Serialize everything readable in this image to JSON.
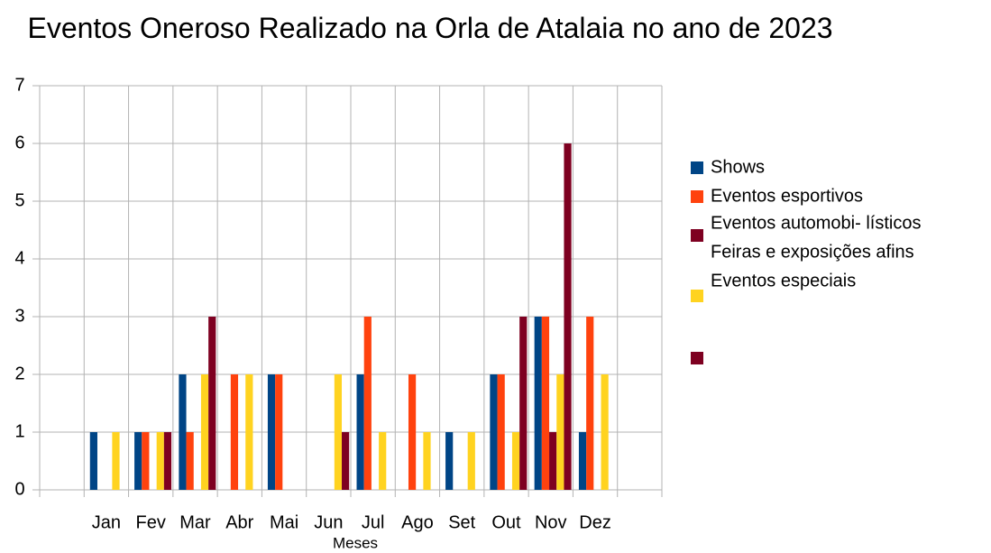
{
  "chart_data": {
    "type": "bar",
    "title": "Eventos Oneroso Realizado na Orla de Atalaia no ano de 2023",
    "x_label": "Meses",
    "categories": [
      null,
      "Jan",
      "Fev",
      "Mar",
      "Abr",
      "Mai",
      "Jun",
      "Jul",
      "Ago",
      "Set",
      "Out",
      "Nov",
      "Dez",
      null
    ],
    "series": [
      {
        "name": "Shows",
        "color": "#004586",
        "values": [
          null,
          1,
          1,
          2,
          0,
          2,
          0,
          2,
          0,
          1,
          2,
          3,
          1,
          null
        ]
      },
      {
        "name": "Eventos esportivos",
        "color": "#ff420e",
        "values": [
          null,
          0,
          1,
          1,
          2,
          2,
          0,
          3,
          2,
          0,
          2,
          3,
          3,
          null
        ]
      },
      {
        "name": "Eventos automobi- lísticos",
        "color": "#7e0021",
        "values": [
          null,
          0,
          0,
          0,
          0,
          0,
          0,
          0,
          0,
          0,
          0,
          1,
          0,
          null
        ]
      },
      {
        "name": "Feiras e exposições afins",
        "color": "#ffd320",
        "values": [
          null,
          1,
          1,
          2,
          2,
          0,
          2,
          1,
          1,
          1,
          1,
          2,
          2,
          null
        ]
      },
      {
        "name": "Eventos especiais",
        "color": "#7e0021",
        "values": [
          null,
          0,
          1,
          3,
          0,
          0,
          1,
          0,
          0,
          0,
          3,
          6,
          0,
          null
        ]
      }
    ],
    "ylim": [
      0,
      7
    ],
    "yticks": [
      0,
      1,
      2,
      3,
      4,
      5,
      6,
      7
    ],
    "grid": true,
    "legend": "right"
  }
}
